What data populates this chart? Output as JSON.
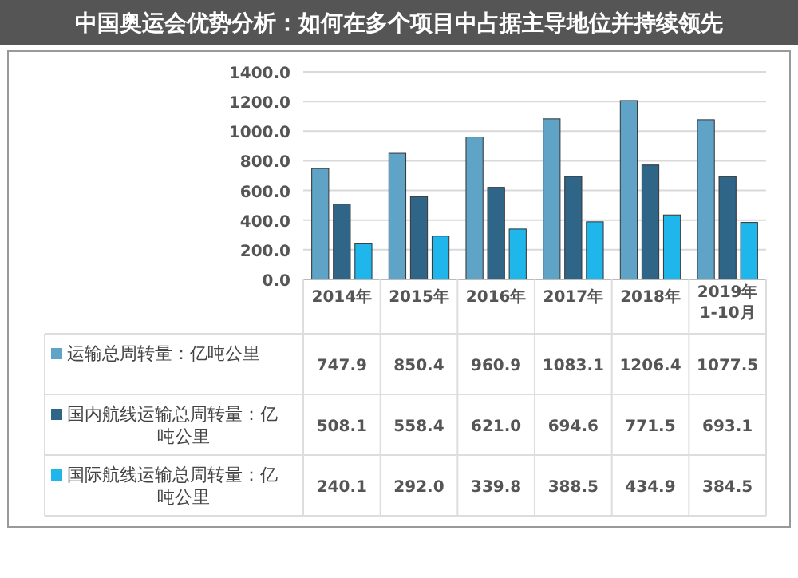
{
  "chart_data": {
    "type": "bar",
    "title": "中国奥运会优势分析：如何在多个项目中占据主导地位并持续领先",
    "categories": [
      "2014年",
      "2015年",
      "2016年",
      "2017年",
      "2018年",
      "2019年\n1-10月"
    ],
    "series": [
      {
        "name": "运输总周转量：亿吨公里",
        "color": "#5fa3c7",
        "values": [
          747.9,
          850.4,
          960.9,
          1083.1,
          1206.4,
          1077.5
        ],
        "value_labels": [
          "747.9",
          "850.4",
          "960.9",
          "1083.1",
          "1206.4",
          "1077.5"
        ]
      },
      {
        "name": "国内航线运输总周转量：亿吨公里",
        "color": "#2f6688",
        "values": [
          508.1,
          558.4,
          621.0,
          694.6,
          771.5,
          693.1
        ],
        "value_labels": [
          "508.1",
          "558.4",
          "621.0",
          "694.6",
          "771.5",
          "693.1"
        ]
      },
      {
        "name": "国际航线运输总周转量：亿吨公里",
        "color": "#1fb6ec",
        "values": [
          240.1,
          292.0,
          339.8,
          388.5,
          434.9,
          384.5
        ],
        "value_labels": [
          "240.1",
          "292.0",
          "339.8",
          "388.5",
          "434.9",
          "384.5"
        ]
      }
    ],
    "ylim": [
      0,
      1400
    ],
    "yticks": [
      {
        "value": 0,
        "label": "0.0"
      },
      {
        "value": 200,
        "label": "200.0"
      },
      {
        "value": 400,
        "label": "400.0"
      },
      {
        "value": 600,
        "label": "600.0"
      },
      {
        "value": 800,
        "label": "800.0"
      },
      {
        "value": 1000,
        "label": "1000.0"
      },
      {
        "value": 1200,
        "label": "1200.0"
      },
      {
        "value": 1400,
        "label": "1400.0"
      }
    ],
    "grid": "y",
    "legend": "bottom"
  }
}
